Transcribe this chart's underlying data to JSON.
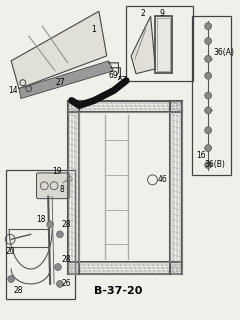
{
  "title": "B-37-20",
  "bg": "#f5f5f0",
  "lc": "#555555",
  "tc": "#000000",
  "lfs": 5.5,
  "tfs": 8
}
